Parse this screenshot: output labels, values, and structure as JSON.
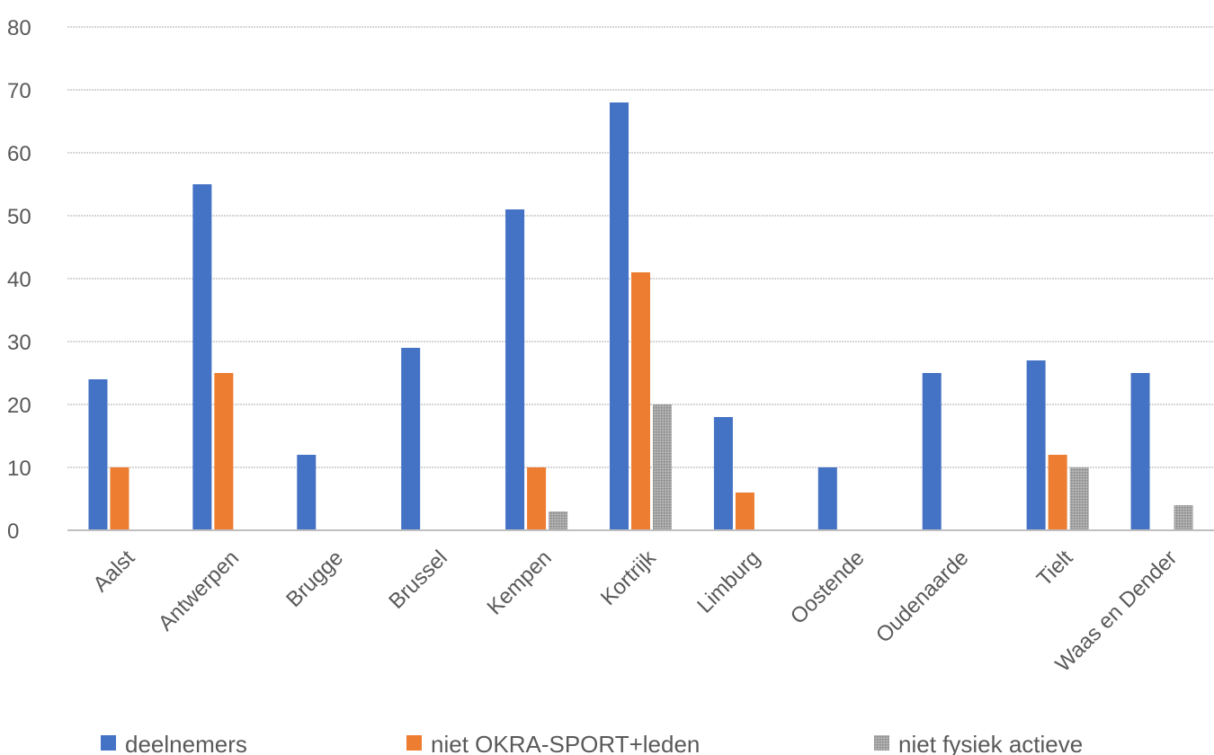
{
  "chart_data": {
    "type": "bar",
    "title": "",
    "xlabel": "",
    "ylabel": "",
    "ylim": [
      0,
      80
    ],
    "yticks": [
      0,
      10,
      20,
      30,
      40,
      50,
      60,
      70,
      80
    ],
    "grid": true,
    "legend_position": "bottom",
    "categories": [
      "Aalst",
      "Antwerpen",
      "Brugge",
      "Brussel",
      "Kempen",
      "Kortrijk",
      "Limburg",
      "Oostende",
      "Oudenaarde",
      "Tielt",
      "Waas en Dender"
    ],
    "series": [
      {
        "name": "deelnemers",
        "color": "#4472C4",
        "values": [
          24,
          55,
          12,
          29,
          51,
          68,
          18,
          10,
          25,
          27,
          25
        ]
      },
      {
        "name": "niet OKRA-SPORT+leden",
        "color": "#ED7D31",
        "values": [
          10,
          25,
          0,
          0,
          10,
          41,
          6,
          0,
          0,
          12,
          0
        ]
      },
      {
        "name": "niet fysiek actieve",
        "color": "#A5A5A5",
        "values": [
          0,
          0,
          0,
          0,
          3,
          20,
          0,
          0,
          0,
          10,
          4
        ]
      }
    ]
  }
}
